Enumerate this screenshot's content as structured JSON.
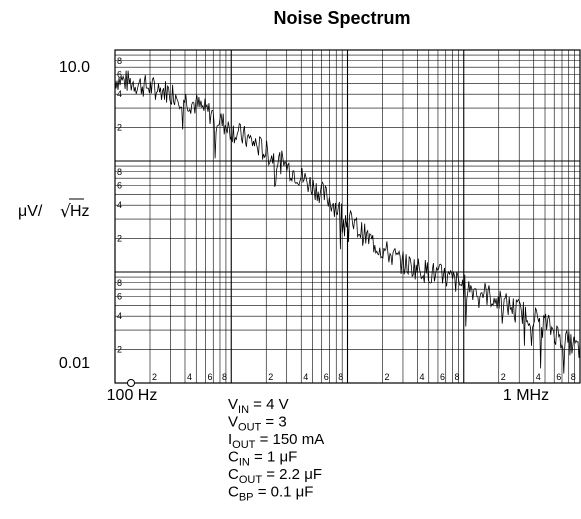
{
  "chart_data": {
    "type": "line",
    "title": "Noise Spectrum",
    "ylabel_prefix": "μV/",
    "ylabel_sqrt": "Hz",
    "x_scale": "log",
    "y_scale": "log",
    "xlim": [
      100,
      1000000
    ],
    "ylim": [
      0.01,
      10.0
    ],
    "grid": true,
    "y_tick_labels": [
      "10.0",
      "0.01"
    ],
    "x_tick_labels": [
      "100 Hz",
      "1 MHz"
    ],
    "minor_tick_digits": [
      "2",
      "4",
      "6",
      "8"
    ],
    "series": [
      {
        "values": [
          [
            100,
            5.5
          ],
          [
            150,
            5.0
          ],
          [
            200,
            4.6
          ],
          [
            300,
            4.2
          ],
          [
            500,
            3.2
          ],
          [
            700,
            2.6
          ],
          [
            1000,
            1.9
          ],
          [
            1500,
            1.5
          ],
          [
            2000,
            1.2
          ],
          [
            3000,
            0.9
          ],
          [
            5000,
            0.6
          ],
          [
            7000,
            0.45
          ],
          [
            10000,
            0.3
          ],
          [
            15000,
            0.2
          ],
          [
            20000,
            0.16
          ],
          [
            30000,
            0.12
          ],
          [
            50000,
            0.1
          ],
          [
            70000,
            0.09
          ],
          [
            100000,
            0.075
          ],
          [
            150000,
            0.065
          ],
          [
            200000,
            0.055
          ],
          [
            300000,
            0.045
          ],
          [
            500000,
            0.035
          ],
          [
            700000,
            0.025
          ],
          [
            1000000,
            0.02
          ]
        ]
      }
    ]
  },
  "conditions": [
    {
      "main": "V",
      "sub": "IN",
      "rest": " = 4 V"
    },
    {
      "main": "V",
      "sub": "OUT",
      "rest": "  = 3"
    },
    {
      "main": "I",
      "sub": "OUT",
      "rest": " = 150 mA"
    },
    {
      "main": "C",
      "sub": "IN",
      "rest": " = 1 μF"
    },
    {
      "main": "C",
      "sub": "OUT",
      "rest": " = 2.2 μF"
    },
    {
      "main": "C",
      "sub": "BP",
      "rest": " = 0.1 μF"
    }
  ]
}
